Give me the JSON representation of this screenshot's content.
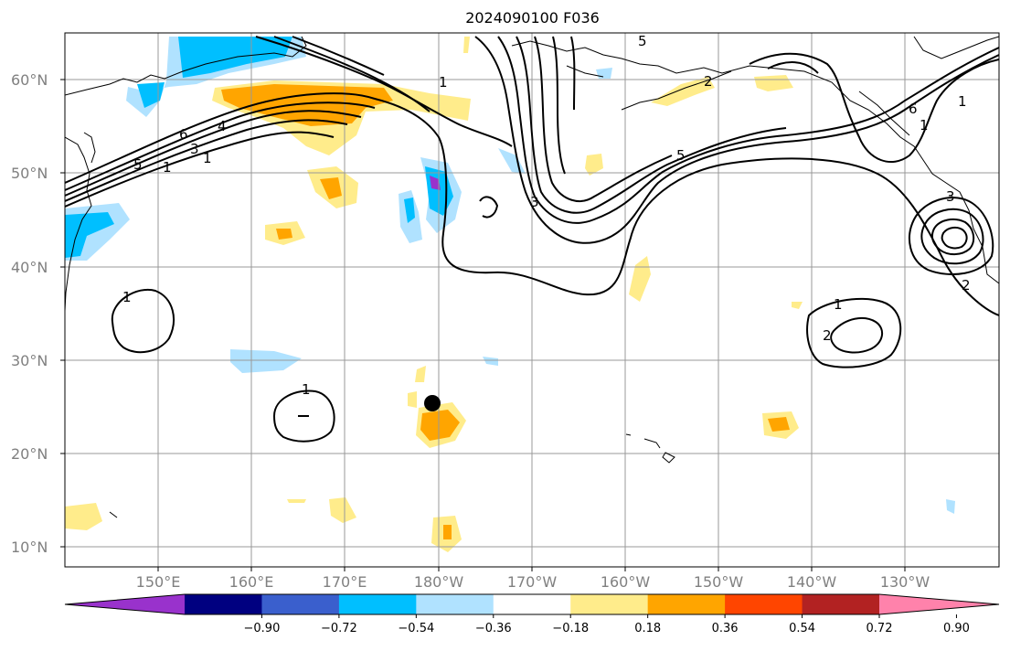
{
  "title": "2024090100 F036",
  "lat_labels": [
    "60°N",
    "50°N",
    "40°N",
    "30°N",
    "20°N",
    "10°N"
  ],
  "lon_labels": [
    "150°E",
    "160°E",
    "170°E",
    "180°W",
    "170°W",
    "160°W",
    "150°W",
    "140°W",
    "130°W"
  ],
  "contour_labels": [
    "1",
    "6",
    "5",
    "4",
    "3",
    "1",
    "1",
    "5",
    "5",
    "3",
    "6",
    "1",
    "1",
    "3",
    "2",
    "1",
    "1",
    "2",
    "1",
    "2"
  ],
  "colorbar": {
    "ticks": [
      "−0.90",
      "−0.72",
      "−0.54",
      "−0.36",
      "−0.18",
      "0.18",
      "0.36",
      "0.54",
      "0.72",
      "0.90"
    ],
    "colors": [
      "#9932CC",
      "#000080",
      "#3A5FCD",
      "#00BFFF",
      "#B0E2FF",
      "#FFFFFF",
      "#FFEC8B",
      "#FFA500",
      "#FF4500",
      "#B22222",
      "#FF82AB"
    ]
  },
  "marker": {
    "lat": 25.5,
    "lon": 180.5
  }
}
